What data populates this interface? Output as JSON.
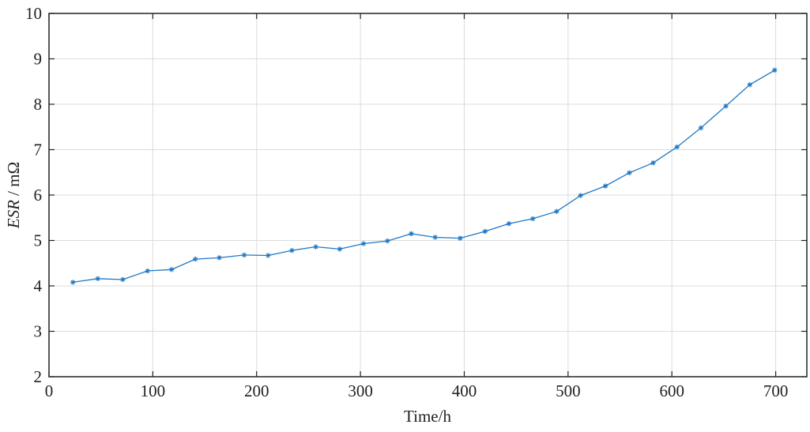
{
  "chart_data": {
    "type": "line",
    "title": "",
    "xlabel": "Time/h",
    "ylabel_italic": "ESR",
    "ylabel_rest": " / mΩ",
    "xlim": [
      0,
      730
    ],
    "ylim": [
      2,
      10
    ],
    "xticks": [
      0,
      100,
      200,
      300,
      400,
      500,
      600,
      700
    ],
    "yticks": [
      2,
      3,
      4,
      5,
      6,
      7,
      8,
      9,
      10
    ],
    "grid": true,
    "legend": "none",
    "series": [
      {
        "color": "#1f77c4",
        "marker": "asterisk",
        "x": [
          23,
          47,
          71,
          95,
          118,
          141,
          164,
          188,
          211,
          234,
          257,
          280,
          303,
          326,
          349,
          372,
          396,
          420,
          443,
          466,
          489,
          512,
          536,
          559,
          582,
          605,
          628,
          652,
          675,
          699
        ],
        "y": [
          4.08,
          4.16,
          4.14,
          4.33,
          4.36,
          4.59,
          4.62,
          4.68,
          4.67,
          4.78,
          4.86,
          4.81,
          4.93,
          4.99,
          5.15,
          5.07,
          5.05,
          5.2,
          5.37,
          5.48,
          5.64,
          5.99,
          6.2,
          6.49,
          6.71,
          7.06,
          7.48,
          7.96,
          8.43,
          8.75
        ]
      }
    ]
  }
}
